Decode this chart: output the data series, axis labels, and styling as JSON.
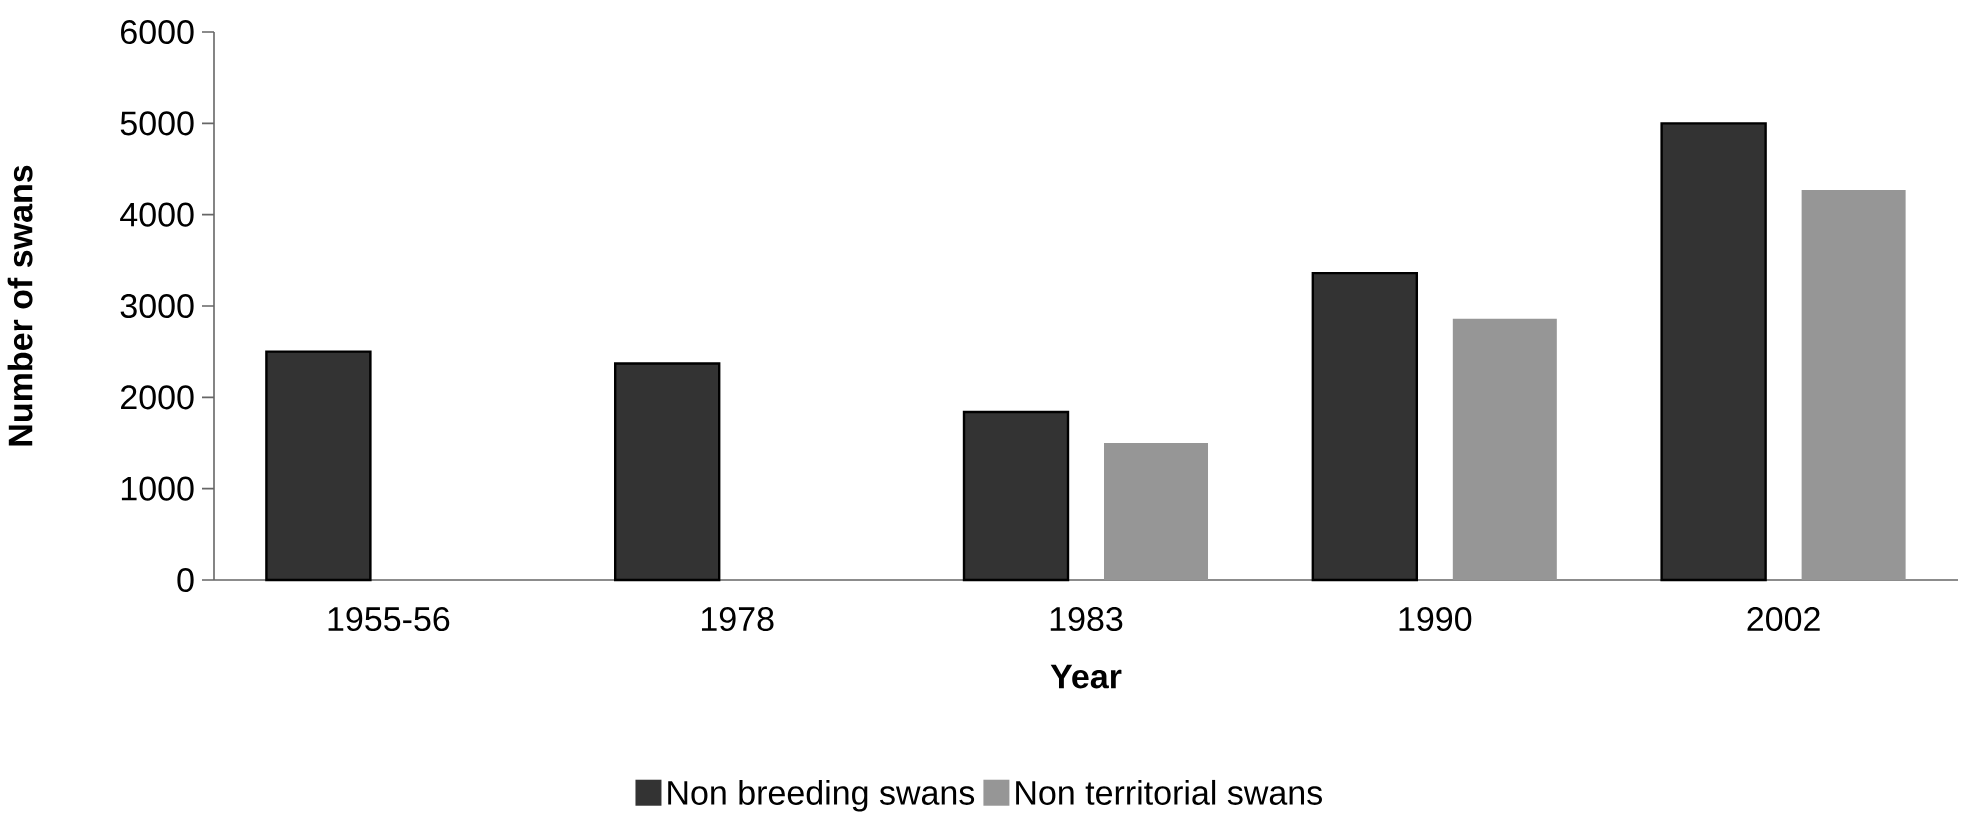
{
  "chart_data": {
    "type": "bar",
    "xlabel": "Year",
    "ylabel": "Number of swans",
    "categories": [
      "1955-56",
      "1978",
      "1983",
      "1990",
      "2002"
    ],
    "series": [
      {
        "name": "Non breeding swans",
        "color": "#333333",
        "values": [
          2500,
          2370,
          1840,
          3360,
          5000
        ]
      },
      {
        "name": "Non territorial swans",
        "color": "#969696",
        "values": [
          null,
          null,
          1500,
          2860,
          4270
        ]
      }
    ],
    "ylim": [
      0,
      6000
    ],
    "yticks": [
      0,
      1000,
      2000,
      3000,
      4000,
      5000,
      6000
    ],
    "legend": "bottom"
  }
}
